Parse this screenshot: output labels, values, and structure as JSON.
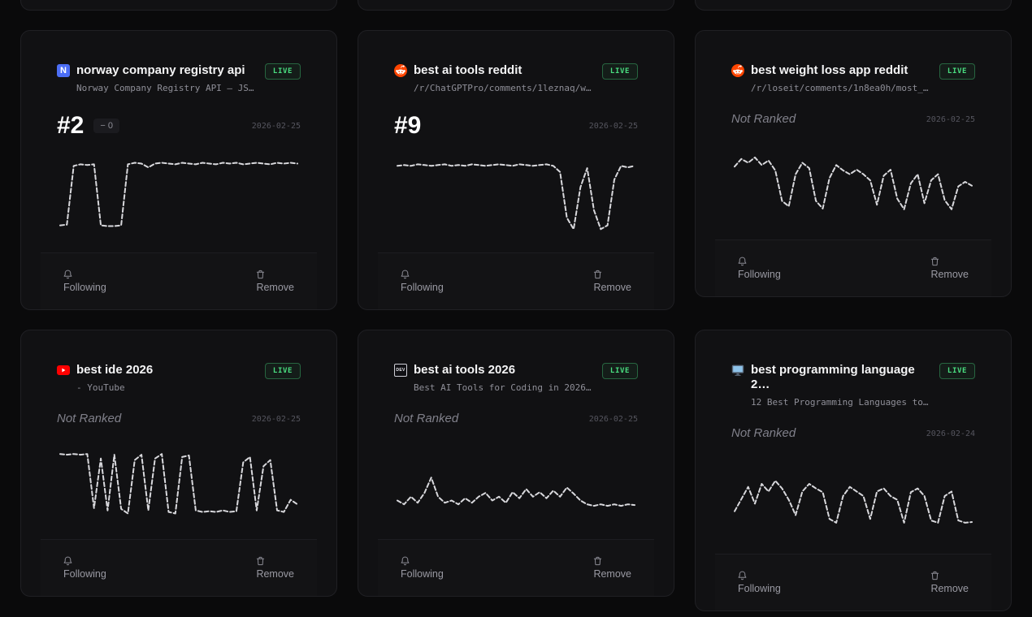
{
  "labels": {
    "live": "LIVE",
    "following": "Following",
    "remove": "Remove"
  },
  "spark_style": {
    "color": "#d8d8dc",
    "dash": "5 3"
  },
  "cards": [
    {
      "icon": "norway-registry-favicon",
      "icon_text": "N",
      "title": "norway company registry api",
      "subtitle": "Norway Company Registry API – JS…",
      "rank": "#2",
      "delta": "− 0",
      "not_ranked": null,
      "date": "2026-02-25",
      "spark": [
        10,
        11,
        88,
        90,
        89,
        90,
        10,
        9,
        9,
        10,
        90,
        92,
        91,
        86,
        91,
        92,
        91,
        90,
        92,
        91,
        90,
        92,
        91,
        90,
        92,
        91,
        92,
        90,
        91,
        92,
        91,
        90,
        92,
        91,
        92,
        91
      ]
    },
    {
      "icon": "reddit-favicon",
      "title": "best ai tools reddit",
      "subtitle": "/r/ChatGPTPro/comments/1leznaq/w…",
      "rank": "#9",
      "delta": null,
      "not_ranked": null,
      "date": "2026-02-25",
      "spark": [
        88,
        89,
        88,
        90,
        89,
        88,
        89,
        90,
        88,
        89,
        88,
        90,
        89,
        88,
        89,
        90,
        89,
        88,
        90,
        89,
        88,
        89,
        90,
        88,
        80,
        20,
        5,
        60,
        85,
        30,
        5,
        10,
        70,
        88,
        86,
        88
      ]
    },
    {
      "icon": "reddit-favicon",
      "title": "best weight loss app reddit",
      "subtitle": "/r/loseit/comments/1n8ea0h/most_…",
      "rank": null,
      "delta": null,
      "not_ranked": "Not Ranked",
      "date": "2026-02-25",
      "spark": [
        70,
        80,
        75,
        82,
        72,
        78,
        65,
        25,
        18,
        60,
        75,
        68,
        25,
        15,
        55,
        72,
        65,
        60,
        66,
        60,
        52,
        20,
        58,
        66,
        28,
        14,
        48,
        60,
        22,
        52,
        60,
        26,
        14,
        44,
        50,
        45
      ]
    },
    {
      "icon": "youtube-favicon",
      "title": "best ide 2026",
      "subtitle": "- YouTube",
      "rank": null,
      "delta": null,
      "not_ranked": "Not Ranked",
      "date": "2026-02-25",
      "spark": [
        86,
        85,
        86,
        85,
        86,
        15,
        80,
        12,
        85,
        14,
        8,
        78,
        85,
        12,
        80,
        86,
        10,
        8,
        82,
        84,
        12,
        10,
        11,
        10,
        12,
        10,
        11,
        75,
        82,
        12,
        70,
        78,
        12,
        10,
        26,
        20
      ]
    },
    {
      "icon": "devto-favicon",
      "icon_text": "DEV",
      "title": "best ai tools 2026",
      "subtitle": "Best AI Tools for Coding in 2026…",
      "rank": null,
      "delta": null,
      "not_ranked": "Not Ranked",
      "date": "2026-02-25",
      "spark": [
        25,
        20,
        30,
        22,
        35,
        55,
        30,
        22,
        25,
        20,
        28,
        22,
        30,
        35,
        25,
        30,
        22,
        36,
        28,
        40,
        30,
        36,
        28,
        38,
        30,
        42,
        34,
        25,
        20,
        18,
        20,
        18,
        20,
        18,
        20,
        19
      ]
    },
    {
      "icon": "monitor-favicon",
      "title": "best programming language 2…",
      "subtitle": "12 Best Programming Languages to…",
      "rank": null,
      "delta": null,
      "not_ranked": "Not Ranked",
      "date": "2026-02-24",
      "spark": [
        30,
        46,
        62,
        40,
        66,
        56,
        70,
        60,
        45,
        25,
        56,
        66,
        60,
        55,
        20,
        15,
        50,
        62,
        56,
        50,
        20,
        56,
        60,
        50,
        45,
        15,
        55,
        60,
        50,
        18,
        15,
        50,
        56,
        18,
        15,
        16
      ]
    }
  ]
}
